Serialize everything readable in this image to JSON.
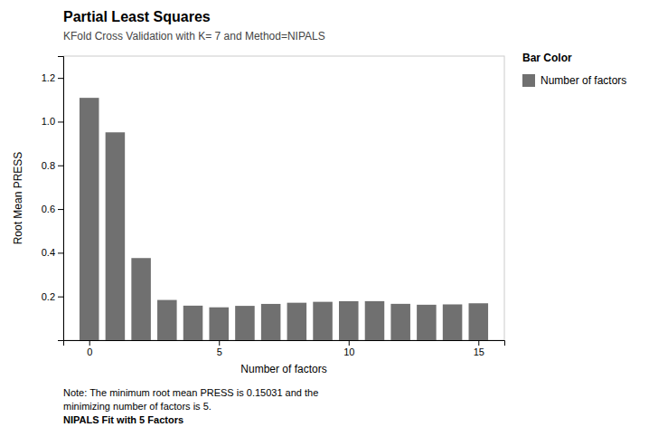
{
  "chart_data": {
    "type": "bar",
    "title": "Partial Least Squares",
    "subtitle": "KFold Cross Validation with K= 7 and Method=NIPALS",
    "x": [
      0,
      1,
      2,
      3,
      4,
      5,
      6,
      7,
      8,
      9,
      10,
      11,
      12,
      13,
      14,
      15
    ],
    "series": [
      {
        "name": "Number of factors",
        "color": "#707070",
        "values": [
          1.10891,
          0.951082,
          0.375741,
          0.183919,
          0.157855,
          0.150309,
          0.156928,
          0.165864,
          0.171164,
          0.175428,
          0.178344,
          0.178492,
          0.166152,
          0.162082,
          0.16365,
          0.168722
        ]
      }
    ],
    "xlabel": "Number of factors",
    "ylabel": "Root Mean PRESS",
    "xlim": [
      -1,
      16
    ],
    "xticks": [
      0,
      5,
      10,
      15
    ],
    "ylim": [
      0,
      1.3
    ],
    "yticks": [
      0.2,
      0.4,
      0.6,
      0.8,
      {
        "value": 1.0,
        "label": "1.0"
      },
      1.2
    ],
    "grid": false,
    "legend": "right",
    "annotations": [
      "Bar Color",
      "Note: The minimum root mean PRESS is 0.15031 and the",
      "minimizing number of factors is 5.",
      "NIPALS Fit with 5 Factors"
    ]
  }
}
